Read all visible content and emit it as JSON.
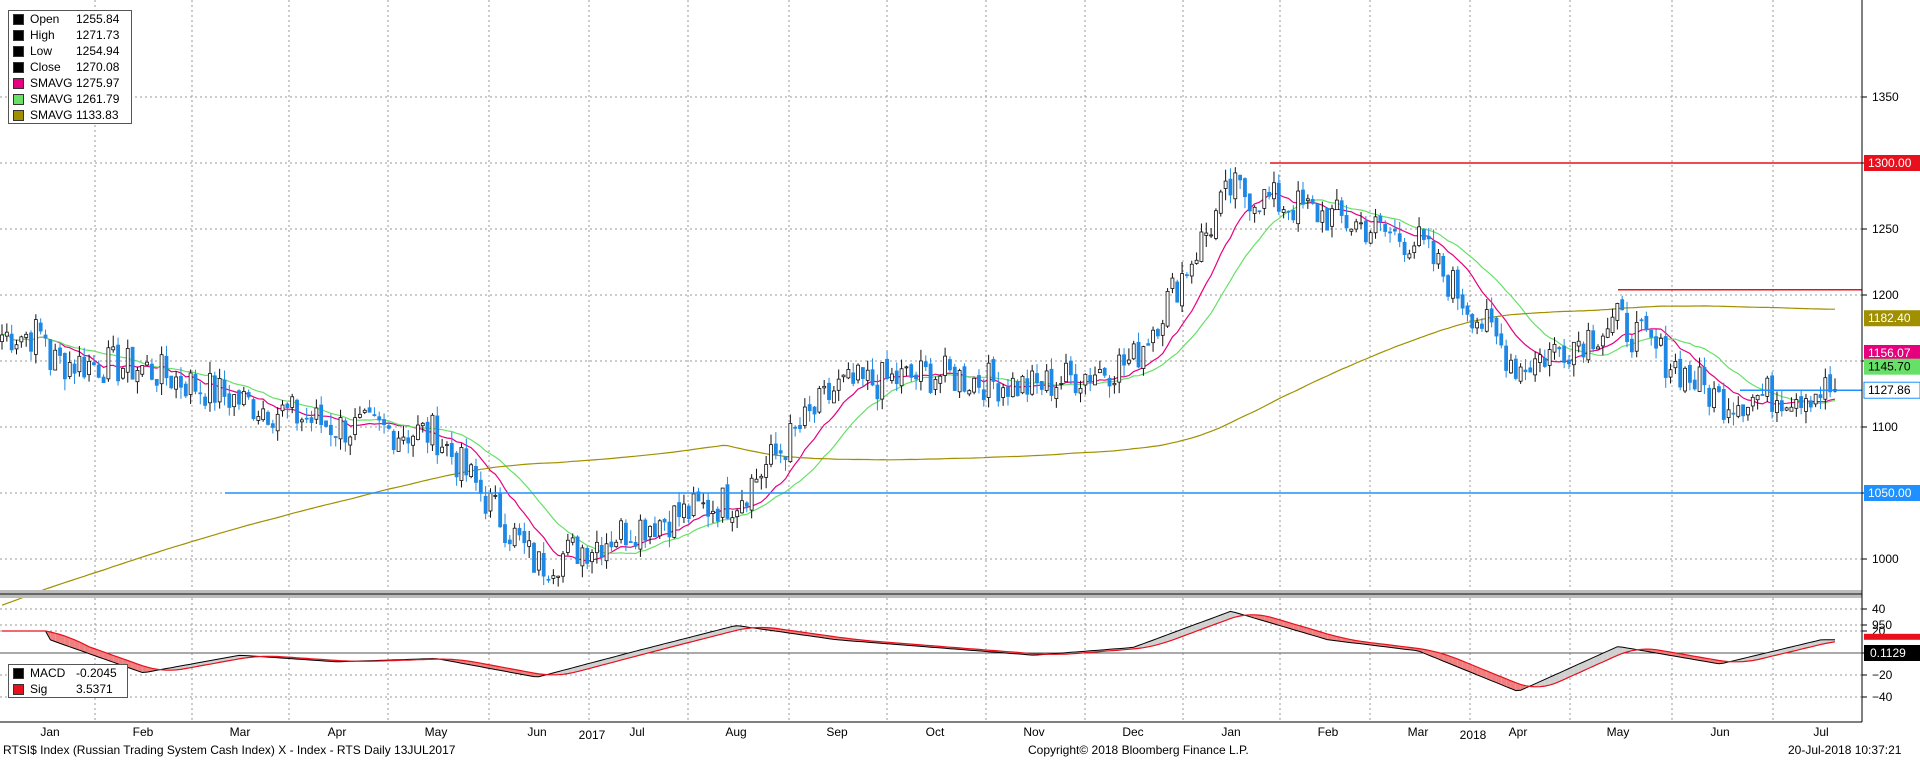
{
  "footer": {
    "ticker": "RTSI$ Index (Russian Trading System Cash Index) X - Index - RTS  Daily 13JUL2017",
    "copyright": "Copyright© 2018 Bloomberg Finance L.P.",
    "timestamp": "20-Jul-2018 10:37:21"
  },
  "legend_main": [
    {
      "name": "Open",
      "value": "1255.84",
      "color": "#000000"
    },
    {
      "name": "High",
      "value": "1271.73",
      "color": "#000000"
    },
    {
      "name": "Low",
      "value": "1254.94",
      "color": "#000000"
    },
    {
      "name": "Close",
      "value": "1270.08",
      "color": "#000000"
    },
    {
      "name": "SMAVG",
      "value": "1275.97",
      "color": "#e6007e"
    },
    {
      "name": "SMAVG",
      "value": "1261.79",
      "color": "#66e066"
    },
    {
      "name": "SMAVG",
      "value": "1133.83",
      "color": "#a09000"
    }
  ],
  "legend_macd": [
    {
      "name": "MACD",
      "value": "-0.2045",
      "color": "#000000"
    },
    {
      "name": "Sig",
      "value": "3.5371",
      "color": "#e8101c"
    }
  ],
  "chart_data": [
    {
      "type": "candlestick",
      "period": "Daily",
      "x_months": [
        "Jan",
        "Feb",
        "Mar",
        "Apr",
        "May",
        "Jun",
        "Jul",
        "Aug",
        "Sep",
        "Oct",
        "Nov",
        "Dec",
        "Jan",
        "Feb",
        "Mar",
        "Apr",
        "May",
        "Jun",
        "Jul"
      ],
      "x_years": [
        {
          "label": "2017",
          "month_index": 6
        },
        {
          "label": "2018",
          "month_index": 15
        }
      ],
      "y_ticks": [
        950,
        1000,
        1050,
        1100,
        1150,
        1200,
        1250,
        1300,
        1350
      ],
      "ylim": [
        910,
        1390
      ],
      "grid": true,
      "legend_position": "top-left",
      "close_series_monthly": [
        {
          "month": "Jan 2017",
          "close": 1150
        },
        {
          "month": "Feb 2017",
          "close": 1145
        },
        {
          "month": "Mar 2017",
          "close": 1120
        },
        {
          "month": "Apr 2017",
          "close": 1100
        },
        {
          "month": "May 2017",
          "close": 1095
        },
        {
          "month": "Jun 2017",
          "close": 995
        },
        {
          "month": "Jul 2017",
          "close": 1025
        },
        {
          "month": "Aug 2017",
          "close": 1045
        },
        {
          "month": "Sep 2017",
          "close": 1130
        },
        {
          "month": "Oct 2017",
          "close": 1140
        },
        {
          "month": "Nov 2017",
          "close": 1130
        },
        {
          "month": "Dec 2017",
          "close": 1150
        },
        {
          "month": "Jan 2018",
          "close": 1280
        },
        {
          "month": "Feb 2018",
          "close": 1260
        },
        {
          "month": "Mar 2018",
          "close": 1240
        },
        {
          "month": "Apr 2018",
          "close": 1145
        },
        {
          "month": "May 2018",
          "close": 1180
        },
        {
          "month": "Jun 2018",
          "close": 1120
        },
        {
          "month": "Jul 2018",
          "close": 1127.86
        }
      ],
      "reference_lines": [
        {
          "value": 1300.0,
          "label": "1300.00",
          "color": "#e8101c"
        },
        {
          "value": 1204,
          "label": "",
          "color": "#e8101c"
        },
        {
          "value": 1127.86,
          "label": "1127.86",
          "color": "#1e90ff"
        },
        {
          "value": 1050.0,
          "label": "1050.00",
          "color": "#1e90ff"
        }
      ],
      "last_value_labels": [
        {
          "value": 1182.4,
          "label": "1182.40",
          "color": "#a09000"
        },
        {
          "value": 1156.07,
          "label": "1156.07",
          "color": "#e6007e"
        },
        {
          "value": 1145.7,
          "label": "1145.70",
          "color": "#66e066"
        },
        {
          "value": 1127.86,
          "label": "1127.86",
          "color": "#ffffff"
        }
      ],
      "moving_averages": [
        {
          "name": "SMAVG",
          "color": "#e6007e"
        },
        {
          "name": "SMAVG",
          "color": "#66e066"
        },
        {
          "name": "SMAVG",
          "color": "#a09000"
        }
      ]
    },
    {
      "type": "line",
      "series": [
        {
          "name": "MACD",
          "color": "#000000"
        },
        {
          "name": "Sig",
          "color": "#e8101c"
        }
      ],
      "y_ticks": [
        -40,
        -20,
        0,
        20,
        40
      ],
      "ylim": [
        -45,
        45
      ],
      "last_value_label": "0.1129",
      "macd_monthly": [
        {
          "month": "Jan 2017",
          "value": 12
        },
        {
          "month": "Feb 2017",
          "value": -18
        },
        {
          "month": "Mar 2017",
          "value": -2
        },
        {
          "month": "Apr 2017",
          "value": -8
        },
        {
          "month": "May 2017",
          "value": -5
        },
        {
          "month": "Jun 2017",
          "value": -22
        },
        {
          "month": "Jul 2017",
          "value": 2
        },
        {
          "month": "Aug 2017",
          "value": 25
        },
        {
          "month": "Sep 2017",
          "value": 12
        },
        {
          "month": "Oct 2017",
          "value": 5
        },
        {
          "month": "Nov 2017",
          "value": -2
        },
        {
          "month": "Dec 2017",
          "value": 5
        },
        {
          "month": "Jan 2018",
          "value": 38
        },
        {
          "month": "Feb 2018",
          "value": 12
        },
        {
          "month": "Mar 2018",
          "value": 2
        },
        {
          "month": "Apr 2018",
          "value": -35
        },
        {
          "month": "May 2018",
          "value": 6
        },
        {
          "month": "Jun 2018",
          "value": -10
        },
        {
          "month": "Jul 2018",
          "value": 12
        }
      ]
    }
  ]
}
